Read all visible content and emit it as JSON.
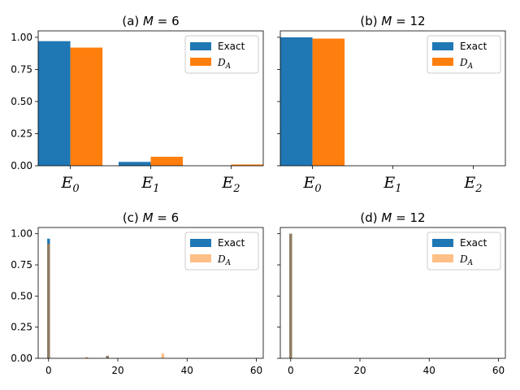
{
  "chart_data": [
    {
      "panel": "a",
      "type": "bar",
      "title": "(a) M = 6",
      "title_parts": {
        "prefix": "(a) ",
        "var": "M",
        "rest": " = 6"
      },
      "categories": [
        "E_0",
        "E_1",
        "E_2"
      ],
      "category_labels": [
        {
          "base": "E",
          "sub": "0"
        },
        {
          "base": "E",
          "sub": "1"
        },
        {
          "base": "E",
          "sub": "2"
        }
      ],
      "series": [
        {
          "name": "Exact",
          "color": "#1f77b4",
          "opacity": 1.0,
          "values": [
            0.97,
            0.03,
            0.0
          ]
        },
        {
          "name": "D_A",
          "color": "#ff7f0e",
          "opacity": 1.0,
          "values": [
            0.92,
            0.07,
            0.01
          ]
        }
      ],
      "ylim": [
        0,
        1.05
      ],
      "yticks": [
        "0.00",
        "0.25",
        "0.50",
        "0.75",
        "1.00"
      ],
      "ytick_values": [
        0,
        0.25,
        0.5,
        0.75,
        1.0
      ],
      "legend": "top-right"
    },
    {
      "panel": "b",
      "type": "bar",
      "title": "(b) M = 12",
      "title_parts": {
        "prefix": "(b) ",
        "var": "M",
        "rest": " = 12"
      },
      "categories": [
        "E_0",
        "E_1",
        "E_2"
      ],
      "category_labels": [
        {
          "base": "E",
          "sub": "0"
        },
        {
          "base": "E",
          "sub": "1"
        },
        {
          "base": "E",
          "sub": "2"
        }
      ],
      "series": [
        {
          "name": "Exact",
          "color": "#1f77b4",
          "opacity": 1.0,
          "values": [
            1.0,
            0.0,
            0.0
          ]
        },
        {
          "name": "D_A",
          "color": "#ff7f0e",
          "opacity": 1.0,
          "values": [
            0.99,
            0.0,
            0.0
          ]
        }
      ],
      "ylim": [
        0,
        1.05
      ],
      "yticks": [],
      "sharey": true,
      "legend": "top-right"
    },
    {
      "panel": "c",
      "type": "bar",
      "title": "(c) M = 6",
      "title_parts": {
        "prefix": "(c) ",
        "var": "M",
        "rest": " = 6"
      },
      "xlim": [
        -3,
        62
      ],
      "xticks": [
        "0",
        "20",
        "40",
        "60"
      ],
      "xtick_values": [
        0,
        20,
        40,
        60
      ],
      "series": [
        {
          "name": "Exact",
          "color": "#1f77b4",
          "opacity": 1.0,
          "points": [
            {
              "x": 0,
              "y": 0.96
            },
            {
              "x": 11,
              "y": 0.005
            },
            {
              "x": 17,
              "y": 0.02
            }
          ]
        },
        {
          "name": "D_A",
          "color": "#ff7f0e",
          "opacity": 0.5,
          "points": [
            {
              "x": 0,
              "y": 0.92
            },
            {
              "x": 11,
              "y": 0.01
            },
            {
              "x": 17,
              "y": 0.02
            },
            {
              "x": 33,
              "y": 0.04
            }
          ]
        }
      ],
      "ylim": [
        0,
        1.05
      ],
      "yticks": [
        "0.00",
        "0.25",
        "0.50",
        "0.75",
        "1.00"
      ],
      "ytick_values": [
        0,
        0.25,
        0.5,
        0.75,
        1.0
      ],
      "legend": "top-right"
    },
    {
      "panel": "d",
      "type": "bar",
      "title": "(d) M = 12",
      "title_parts": {
        "prefix": "(d) ",
        "var": "M",
        "rest": " = 12"
      },
      "xlim": [
        -3,
        62
      ],
      "xticks": [
        "0",
        "20",
        "40",
        "60"
      ],
      "xtick_values": [
        0,
        20,
        40,
        60
      ],
      "series": [
        {
          "name": "Exact",
          "color": "#1f77b4",
          "opacity": 1.0,
          "points": [
            {
              "x": 0,
              "y": 1.0
            }
          ]
        },
        {
          "name": "D_A",
          "color": "#ff7f0e",
          "opacity": 0.5,
          "points": [
            {
              "x": 0,
              "y": 1.0
            }
          ]
        }
      ],
      "ylim": [
        0,
        1.05
      ],
      "yticks": [],
      "sharey": true,
      "legend": "top-right"
    }
  ],
  "legend": {
    "exact_label": "Exact",
    "da_label": {
      "base": "D",
      "sub": "A"
    }
  }
}
